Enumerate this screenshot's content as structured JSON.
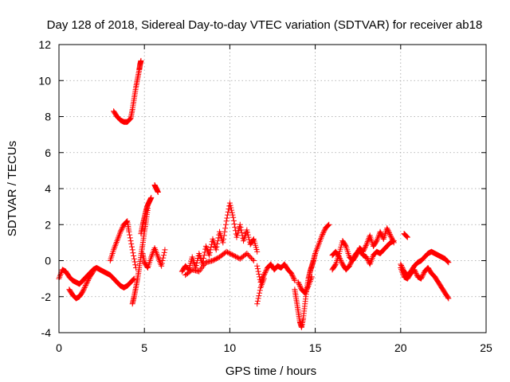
{
  "chart_data": {
    "type": "scatter",
    "title": "Day 128 of 2018, Sidereal Day-to-day VTEC variation (SDTVAR) for receiver ab18",
    "xlabel": "GPS time / hours",
    "ylabel": "SDTVAR / TECUs",
    "xlim": [
      0,
      25
    ],
    "ylim": [
      -4,
      12
    ],
    "x_ticks": [
      0,
      5,
      10,
      15,
      20,
      25
    ],
    "x_tick_labels": [
      "0",
      "5",
      "10",
      "15",
      "20",
      "25"
    ],
    "y_ticks": [
      -4,
      -2,
      0,
      2,
      4,
      6,
      8,
      10,
      12
    ],
    "y_tick_labels": [
      "-4",
      "-2",
      "0",
      "2",
      "4",
      "6",
      "8",
      "10",
      "12"
    ],
    "grid": true,
    "marker": "+",
    "series": [
      {
        "name": "SDTVAR",
        "color": "#ff0000",
        "segments": [
          {
            "x": [
              0.0,
              0.2,
              0.4,
              0.6,
              0.8,
              1.0,
              1.2,
              1.4,
              1.6,
              1.8,
              2.0,
              2.2,
              2.4,
              2.6,
              2.8,
              3.0,
              3.2,
              3.4,
              3.6,
              3.8,
              4.0,
              4.2,
              4.4
            ],
            "y": [
              -1.0,
              -0.5,
              -0.6,
              -0.9,
              -1.1,
              -1.2,
              -1.3,
              -1.1,
              -0.9,
              -0.7,
              -0.5,
              -0.4,
              -0.5,
              -0.6,
              -0.7,
              -0.8,
              -1.0,
              -1.2,
              -1.4,
              -1.5,
              -1.4,
              -1.2,
              -1.0
            ]
          },
          {
            "x": [
              0.6,
              0.8,
              1.0,
              1.2,
              1.4,
              1.6,
              1.8,
              2.0
            ],
            "y": [
              -1.6,
              -1.9,
              -2.1,
              -2.0,
              -1.7,
              -1.3,
              -0.9,
              -0.6
            ]
          },
          {
            "x": [
              3.0,
              3.2,
              3.4,
              3.6,
              3.8,
              4.0,
              4.1,
              4.3,
              4.5
            ],
            "y": [
              0.0,
              0.6,
              1.1,
              1.6,
              2.0,
              2.2,
              1.6,
              0.6,
              -0.4
            ]
          },
          {
            "x": [
              4.3,
              4.4,
              4.5,
              4.6,
              4.7,
              4.8,
              4.9,
              5.0,
              5.1,
              5.2
            ],
            "y": [
              -2.4,
              -2.0,
              -1.5,
              -1.0,
              -0.4,
              0.3,
              0.9,
              1.6,
              2.2,
              2.9
            ]
          },
          {
            "x": [
              3.2,
              3.4,
              3.6,
              3.8,
              4.0,
              4.2,
              4.3,
              4.4,
              4.5,
              4.6,
              4.7,
              4.75,
              4.8
            ],
            "y": [
              8.3,
              8.0,
              7.8,
              7.7,
              7.7,
              7.9,
              8.4,
              9.0,
              9.6,
              10.1,
              10.6,
              10.9,
              11.1
            ]
          },
          {
            "x": [
              4.8,
              4.9,
              5.0,
              5.1,
              5.2,
              5.3,
              5.4
            ],
            "y": [
              1.5,
              2.0,
              2.4,
              2.8,
              3.1,
              3.3,
              3.5
            ]
          },
          {
            "x": [
              5.6,
              5.7,
              5.8
            ],
            "y": [
              4.2,
              4.0,
              3.8
            ]
          },
          {
            "x": [
              4.9,
              5.0,
              5.2,
              5.4,
              5.6,
              5.8,
              6.0,
              6.2
            ],
            "y": [
              0.4,
              -0.1,
              -0.4,
              0.2,
              0.7,
              0.2,
              -0.3,
              0.6
            ]
          },
          {
            "x": [
              7.2,
              7.4,
              7.6,
              7.8,
              8.0,
              8.2,
              8.4,
              8.6,
              8.8,
              9.0,
              9.2,
              9.4,
              9.6,
              9.8,
              10.0,
              10.2,
              10.4,
              10.6,
              10.8,
              11.0,
              11.2,
              11.4,
              11.6
            ],
            "y": [
              -0.6,
              -0.3,
              -0.5,
              0.2,
              -0.4,
              0.4,
              -0.2,
              0.8,
              0.3,
              1.2,
              0.6,
              1.6,
              1.0,
              2.2,
              3.2,
              2.4,
              1.3,
              2.0,
              1.1,
              1.7,
              0.9,
              1.2,
              0.5
            ]
          },
          {
            "x": [
              7.4,
              7.8,
              8.2,
              8.6,
              9.0,
              9.4,
              9.8,
              10.2,
              10.6,
              11.0,
              11.4
            ],
            "y": [
              -0.8,
              -0.5,
              -0.6,
              -0.1,
              0.0,
              0.2,
              0.5,
              0.3,
              0.1,
              0.4,
              0.0
            ]
          },
          {
            "x": [
              11.6,
              11.8,
              12.0,
              12.2,
              12.4,
              12.6,
              12.8,
              13.0,
              13.2,
              13.4,
              13.6,
              13.8
            ],
            "y": [
              -0.3,
              -1.2,
              -0.8,
              -0.4,
              -0.2,
              -0.5,
              -0.3,
              -0.4,
              -0.2,
              -0.5,
              -0.7,
              -1.1
            ]
          },
          {
            "x": [
              11.6,
              11.8,
              12.0
            ],
            "y": [
              -2.4,
              -1.5,
              -1.0
            ]
          },
          {
            "x": [
              13.8,
              13.9,
              14.0,
              14.1,
              14.2,
              14.3,
              14.4,
              14.5,
              14.6,
              14.7,
              14.8,
              14.9,
              15.0,
              15.2,
              15.4,
              15.6,
              15.8
            ],
            "y": [
              -1.6,
              -2.2,
              -2.8,
              -3.4,
              -3.7,
              -3.2,
              -2.4,
              -1.6,
              -1.0,
              -0.6,
              -0.3,
              0.0,
              0.4,
              0.9,
              1.4,
              1.8,
              2.0
            ]
          },
          {
            "x": [
              14.0,
              14.2,
              14.4,
              14.6,
              14.8
            ],
            "y": [
              -1.2,
              -1.6,
              -1.8,
              -1.4,
              -0.9
            ]
          },
          {
            "x": [
              16.0,
              16.2,
              16.4,
              16.6,
              16.8,
              17.0,
              17.2,
              17.4,
              17.6,
              17.8,
              18.0,
              18.2,
              18.4,
              18.6,
              18.8,
              19.0,
              19.2,
              19.4,
              19.6
            ],
            "y": [
              -0.5,
              -0.2,
              0.4,
              1.1,
              0.8,
              0.2,
              0.0,
              0.3,
              0.7,
              0.5,
              0.9,
              1.4,
              0.8,
              1.1,
              1.6,
              1.2,
              1.8,
              1.4,
              1.0
            ]
          },
          {
            "x": [
              16.0,
              16.2,
              16.4,
              16.6,
              16.8,
              17.0,
              17.2,
              17.4,
              17.6,
              17.8,
              18.0,
              18.2,
              18.4,
              18.6,
              18.8,
              19.0,
              19.2,
              19.4,
              19.6
            ],
            "y": [
              0.3,
              0.5,
              0.2,
              -0.2,
              -0.5,
              -0.3,
              0.1,
              0.4,
              0.6,
              0.3,
              0.2,
              -0.2,
              0.3,
              0.5,
              0.4,
              0.6,
              0.8,
              1.0,
              1.1
            ]
          },
          {
            "x": [
              20.2,
              20.4
            ],
            "y": [
              1.5,
              1.3
            ]
          },
          {
            "x": [
              20.0,
              20.2,
              20.4,
              20.6,
              20.8,
              21.0,
              21.2,
              21.4,
              21.6,
              21.8,
              22.0,
              22.2,
              22.4,
              22.6,
              22.8
            ],
            "y": [
              -0.2,
              -0.6,
              -0.8,
              -0.6,
              -0.3,
              -0.1,
              0.0,
              0.2,
              0.4,
              0.5,
              0.4,
              0.3,
              0.2,
              0.1,
              -0.1
            ]
          },
          {
            "x": [
              20.0,
              20.2,
              20.4,
              20.6,
              20.8,
              21.0,
              21.2,
              21.4,
              21.6,
              21.8,
              22.0,
              22.2,
              22.4,
              22.6,
              22.8
            ],
            "y": [
              -0.4,
              -0.9,
              -1.0,
              -0.7,
              -0.5,
              -0.9,
              -1.0,
              -0.6,
              -0.4,
              -0.7,
              -0.9,
              -1.2,
              -1.5,
              -1.8,
              -2.1
            ]
          }
        ]
      }
    ]
  }
}
